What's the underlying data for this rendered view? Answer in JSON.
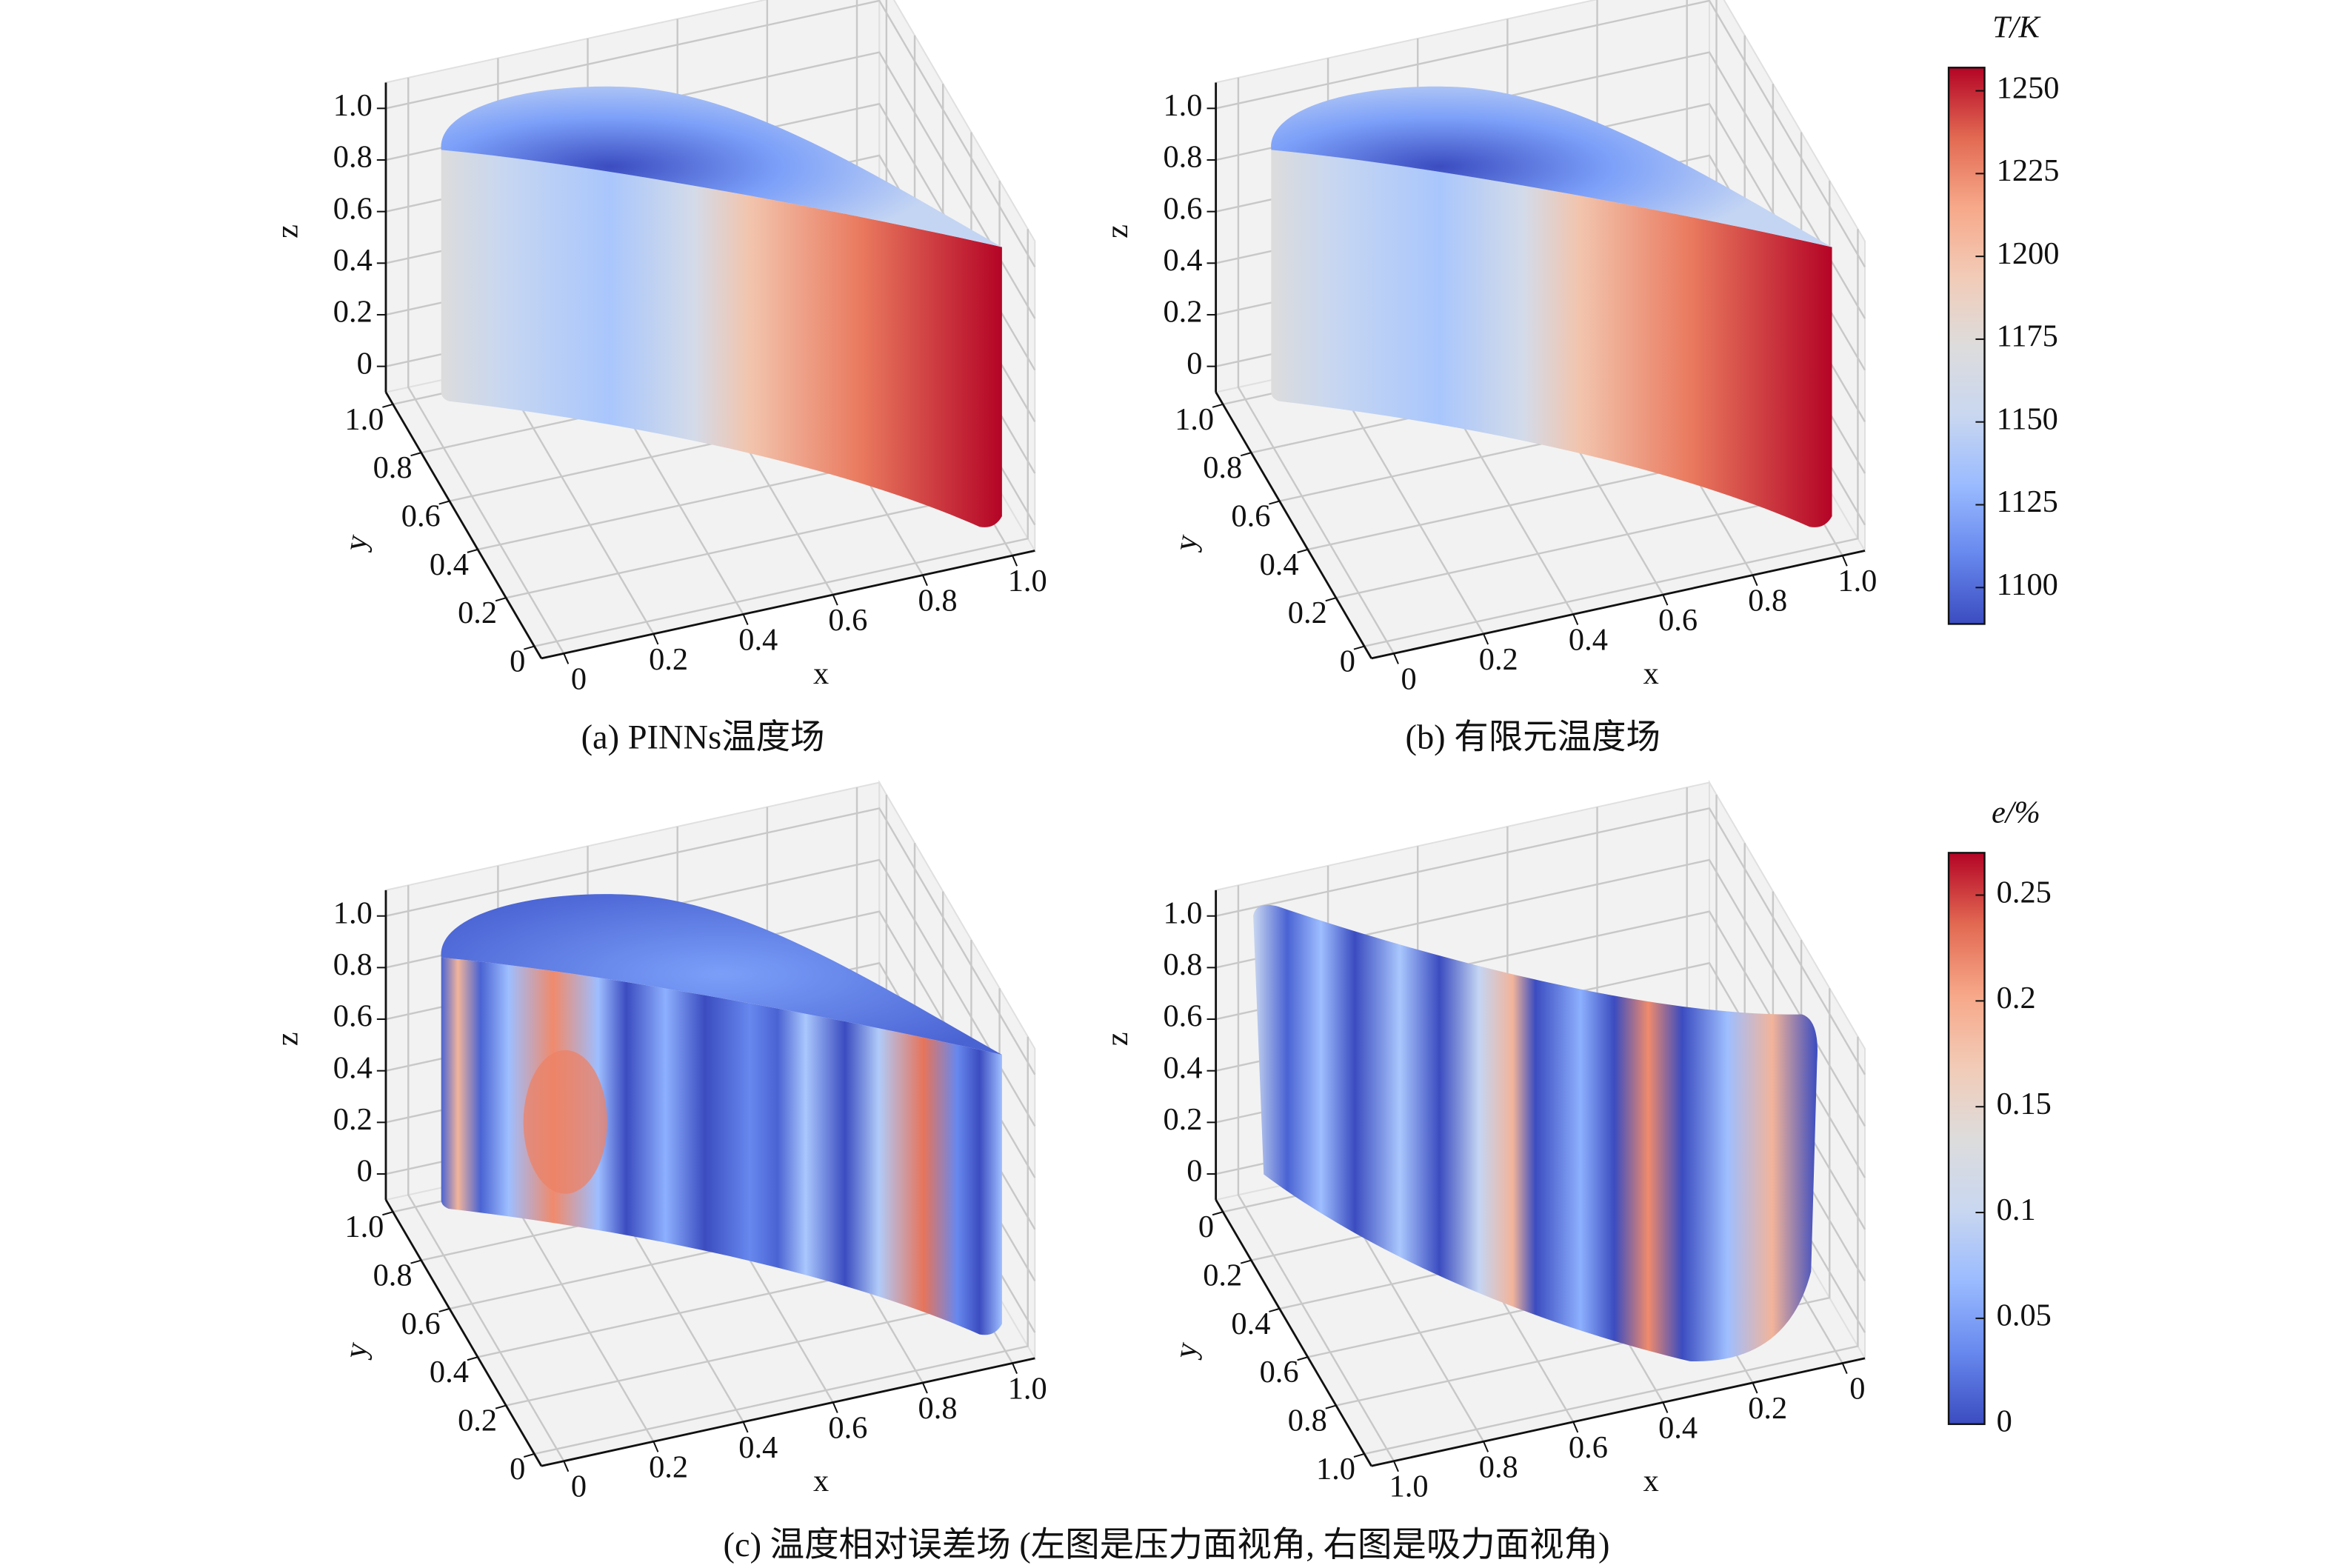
{
  "chart_data": [
    {
      "type": "surface3d",
      "caption": "(a) PINNs温度场",
      "xlabel": "x",
      "ylabel": "y",
      "zlabel": "z",
      "xlim": [
        -0.05,
        1.05
      ],
      "ylim": [
        -0.05,
        1.05
      ],
      "zlim": [
        -0.1,
        1.1
      ],
      "xticks": [
        0,
        0.2,
        0.4,
        0.6,
        0.8,
        {
          "value": 1,
          "label": "1.0"
        }
      ],
      "yticks": [
        0,
        0.2,
        0.4,
        0.6,
        0.8,
        {
          "value": 1,
          "label": "1.0"
        }
      ],
      "zticks": [
        0,
        0.2,
        0.4,
        0.6,
        0.8,
        {
          "value": 1,
          "label": "1.0"
        }
      ],
      "grid": true
    },
    {
      "type": "surface3d",
      "caption": "(b) 有限元温度场",
      "xlabel": "x",
      "ylabel": "y",
      "zlabel": "z",
      "xlim": [
        -0.05,
        1.05
      ],
      "ylim": [
        -0.05,
        1.05
      ],
      "zlim": [
        -0.1,
        1.1
      ],
      "xticks": [
        0,
        0.2,
        0.4,
        0.6,
        0.8,
        {
          "value": 1,
          "label": "1.0"
        }
      ],
      "yticks": [
        0,
        0.2,
        0.4,
        0.6,
        0.8,
        {
          "value": 1,
          "label": "1.0"
        }
      ],
      "zticks": [
        0,
        0.2,
        0.4,
        0.6,
        0.8,
        {
          "value": 1,
          "label": "1.0"
        }
      ],
      "grid": true
    },
    {
      "type": "surface3d",
      "caption": "(c) 温度相对误差场 (左图是压力面视角, 右图是吸力面视角)",
      "xlabel": "x",
      "ylabel": "y",
      "zlabel": "z",
      "xlim": [
        -0.05,
        1.05
      ],
      "ylim": [
        -0.05,
        1.05
      ],
      "zlim": [
        -0.1,
        1.1
      ],
      "xticks": [
        0,
        0.2,
        0.4,
        0.6,
        0.8,
        {
          "value": 1,
          "label": "1.0"
        }
      ],
      "yticks": [
        0,
        0.2,
        0.4,
        0.6,
        0.8,
        {
          "value": 1,
          "label": "1.0"
        }
      ],
      "zticks": [
        0,
        0.2,
        0.4,
        0.6,
        0.8,
        {
          "value": 1,
          "label": "1.0"
        }
      ],
      "grid": true
    },
    {
      "type": "surface3d",
      "xlabel": "x",
      "ylabel": "y",
      "zlabel": "z",
      "xlim": [
        1.05,
        -0.05
      ],
      "ylim": [
        1.05,
        -0.05
      ],
      "zlim": [
        -0.1,
        1.1
      ],
      "xticks": [
        0,
        0.2,
        0.4,
        0.6,
        0.8,
        {
          "value": 1,
          "label": "1.0"
        }
      ],
      "yticks": [
        0,
        0.2,
        0.4,
        0.6,
        0.8,
        {
          "value": 1,
          "label": "1.0"
        }
      ],
      "zticks": [
        0,
        0.2,
        0.4,
        0.6,
        0.8,
        {
          "value": 1,
          "label": "1.0"
        }
      ],
      "grid": true
    },
    {
      "type": "colorbar",
      "label": "T/K",
      "clim": [
        1089,
        1257
      ],
      "ticks": [
        1100,
        1125,
        1150,
        1175,
        1200,
        1225,
        1250
      ],
      "colors": [
        "#3b4cc0",
        "#6788ee",
        "#9abbff",
        "#c9d7f0",
        "#dddcdc",
        "#f2cbb7",
        "#f7a889",
        "#e26952",
        "#b40426"
      ]
    },
    {
      "type": "colorbar",
      "label": "e/%",
      "clim": [
        0,
        0.27
      ],
      "ticks": [
        0,
        0.05,
        0.1,
        0.15,
        0.2,
        0.25
      ],
      "colors": [
        "#3b4cc0",
        "#6788ee",
        "#9abbff",
        "#c9d7f0",
        "#dddcdc",
        "#f2cbb7",
        "#f7a889",
        "#e26952",
        "#b40426"
      ]
    }
  ]
}
